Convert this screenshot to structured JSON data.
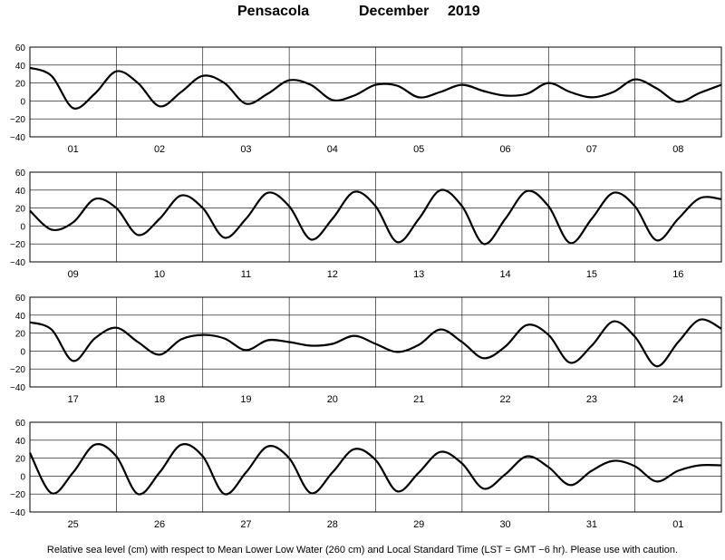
{
  "title": {
    "station": "Pensacola",
    "month": "December",
    "year": "2019"
  },
  "footnote": "Relative sea level (cm) with respect to Mean Lower Low Water (260 cm) and Local Standard Time (LST = GMT −6 hr). Please use with caution.",
  "chart_data": {
    "type": "line",
    "ylim": [
      -40,
      60
    ],
    "yticks": [
      "60",
      "40",
      "20",
      "0",
      "−20",
      "−40"
    ],
    "yticks_values": [
      60,
      40,
      20,
      0,
      -20,
      -40
    ],
    "panels": [
      {
        "days": [
          "01",
          "02",
          "03",
          "04",
          "05",
          "06",
          "07",
          "08"
        ],
        "x": [
          0,
          0.25,
          0.5,
          0.75,
          1,
          1.25,
          1.5,
          1.75,
          2,
          2.25,
          2.5,
          2.75,
          3,
          3.25,
          3.5,
          3.75,
          4,
          4.25,
          4.5,
          4.75,
          5,
          5.25,
          5.5,
          5.75,
          6,
          6.25,
          6.5,
          6.75,
          7,
          7.25,
          7.5,
          7.75,
          8
        ],
        "y": [
          37,
          28,
          -8,
          8,
          33,
          20,
          -6,
          10,
          28,
          20,
          -3,
          8,
          23,
          18,
          1,
          6,
          18,
          17,
          4,
          10,
          18,
          11,
          6,
          8,
          20,
          10,
          4,
          10,
          24,
          14,
          -1,
          9,
          18
        ]
      },
      {
        "days": [
          "09",
          "10",
          "11",
          "12",
          "13",
          "14",
          "15",
          "16"
        ],
        "x": [
          0,
          0.25,
          0.5,
          0.75,
          1,
          1.25,
          1.5,
          1.75,
          2,
          2.25,
          2.5,
          2.75,
          3,
          3.25,
          3.5,
          3.75,
          4,
          4.25,
          4.5,
          4.75,
          5,
          5.25,
          5.5,
          5.75,
          6,
          6.25,
          6.5,
          6.75,
          7,
          7.25,
          7.5,
          7.75,
          8
        ],
        "y": [
          17,
          -4,
          4,
          30,
          20,
          -10,
          8,
          34,
          20,
          -13,
          8,
          37,
          22,
          -15,
          8,
          38,
          22,
          -18,
          8,
          40,
          22,
          -20,
          8,
          39,
          22,
          -19,
          8,
          37,
          22,
          -16,
          8,
          31,
          30
        ]
      },
      {
        "days": [
          "17",
          "18",
          "19",
          "20",
          "21",
          "22",
          "23",
          "24"
        ],
        "x": [
          0,
          0.25,
          0.5,
          0.75,
          1,
          1.25,
          1.5,
          1.75,
          2,
          2.25,
          2.5,
          2.75,
          3,
          3.25,
          3.5,
          3.75,
          4,
          4.25,
          4.5,
          4.75,
          5,
          5.25,
          5.5,
          5.75,
          6,
          6.25,
          6.5,
          6.75,
          7,
          7.25,
          7.5,
          7.75,
          8
        ],
        "y": [
          32,
          24,
          -11,
          14,
          26,
          10,
          -4,
          13,
          18,
          14,
          1,
          12,
          10,
          6,
          8,
          17,
          8,
          -1,
          7,
          24,
          10,
          -8,
          5,
          29,
          18,
          -13,
          6,
          33,
          16,
          -17,
          10,
          35,
          25
        ]
      },
      {
        "days": [
          "25",
          "26",
          "27",
          "28",
          "29",
          "30",
          "31",
          "01"
        ],
        "x": [
          0,
          0.25,
          0.5,
          0.75,
          1,
          1.25,
          1.5,
          1.75,
          2,
          2.25,
          2.5,
          2.75,
          3,
          3.25,
          3.5,
          3.75,
          4,
          4.25,
          4.5,
          4.75,
          5,
          5.25,
          5.5,
          5.75,
          6,
          6.25,
          6.5,
          6.75,
          7,
          7.25,
          7.5,
          7.75,
          8
        ],
        "y": [
          26,
          -19,
          4,
          35,
          22,
          -20,
          4,
          35,
          22,
          -20,
          4,
          33,
          20,
          -19,
          4,
          30,
          18,
          -17,
          4,
          27,
          14,
          -14,
          2,
          22,
          10,
          -10,
          6,
          17,
          11,
          -6,
          6,
          12,
          12
        ]
      }
    ]
  }
}
